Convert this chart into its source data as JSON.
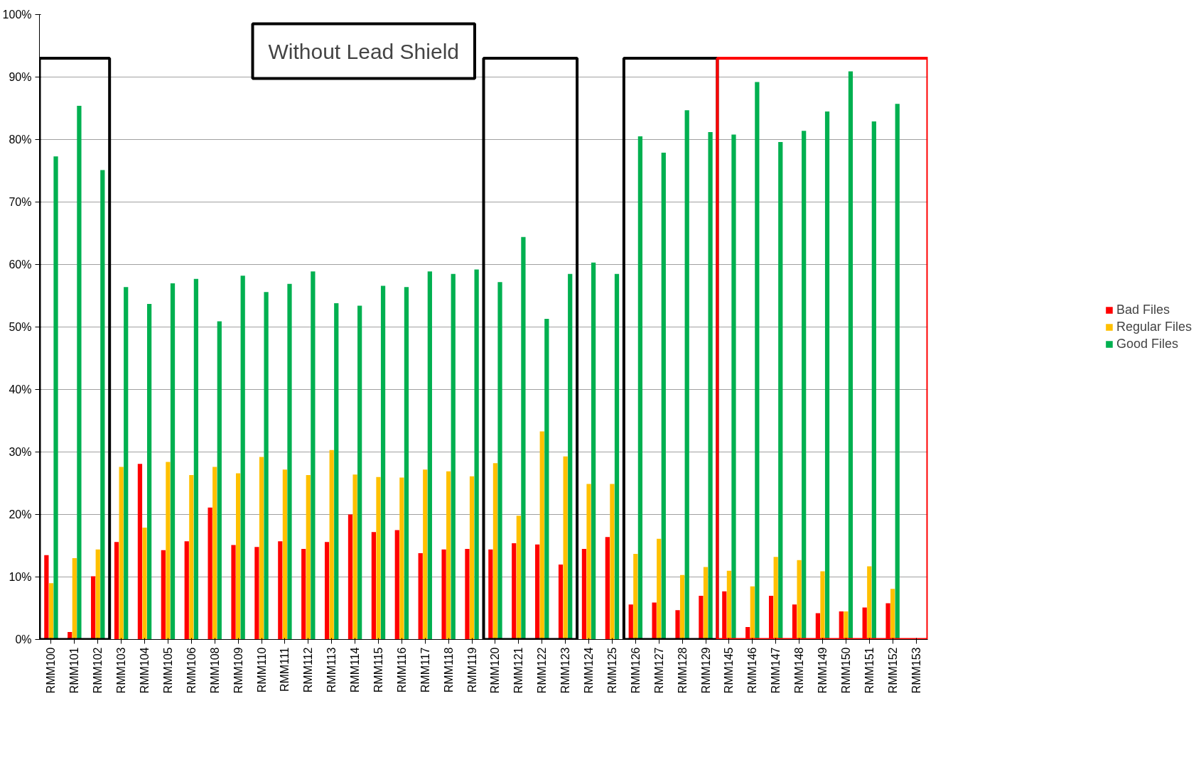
{
  "chart_data": {
    "type": "bar",
    "categories": [
      "RMM100",
      "RMM101",
      "RMM102",
      "RMM103",
      "RMM104",
      "RMM105",
      "RMM106",
      "RMM108",
      "RMM109",
      "RMM110",
      "RMM111",
      "RMM112",
      "RMM113",
      "RMM114",
      "RMM115",
      "RMM116",
      "RMM117",
      "RMM118",
      "RMM119",
      "RMM120",
      "RMM121",
      "RMM122",
      "RMM123",
      "RMM124",
      "RMM125",
      "RMM126",
      "RMM127",
      "RMM128",
      "RMM129",
      "RMM145",
      "RMM146",
      "RMM147",
      "RMM148",
      "RMM149",
      "RMM150",
      "RMM151",
      "RMM152",
      "RMM153"
    ],
    "series": [
      {
        "name": "Bad Files",
        "color": "#ff0000",
        "values": [
          13.5,
          1.2,
          10.1,
          15.6,
          28.1,
          14.3,
          15.7,
          21.1,
          15.1,
          14.8,
          15.7,
          14.5,
          15.6,
          20.0,
          17.2,
          17.5,
          13.8,
          14.4,
          14.5,
          14.4,
          15.4,
          15.2,
          12.0,
          14.5,
          16.4,
          5.6,
          5.9,
          4.7,
          7.0,
          7.7,
          2.0,
          7.0,
          5.6,
          4.2,
          4.5,
          5.1,
          5.8,
          0
        ]
      },
      {
        "name": "Regular Files",
        "color": "#ffc000",
        "values": [
          9.0,
          13.0,
          14.4,
          27.6,
          17.9,
          28.4,
          26.3,
          27.6,
          26.6,
          29.2,
          27.2,
          26.3,
          30.3,
          26.4,
          26.0,
          25.9,
          27.2,
          26.9,
          26.1,
          28.2,
          19.8,
          33.3,
          29.3,
          24.9,
          24.9,
          13.7,
          16.1,
          10.3,
          11.6,
          11.0,
          8.5,
          13.2,
          12.7,
          10.9,
          4.5,
          11.7,
          8.1,
          0
        ]
      },
      {
        "name": "Good Files",
        "color": "#00b050",
        "values": [
          77.3,
          85.4,
          75.1,
          56.4,
          53.7,
          57.0,
          57.7,
          50.9,
          58.2,
          55.6,
          56.9,
          58.9,
          53.8,
          53.4,
          56.6,
          56.4,
          58.9,
          58.5,
          59.2,
          57.2,
          64.4,
          51.3,
          58.5,
          60.3,
          58.5,
          80.5,
          77.9,
          84.7,
          81.2,
          80.8,
          89.2,
          79.6,
          81.4,
          84.5,
          90.9,
          82.9,
          85.7,
          0
        ]
      }
    ],
    "ylim": [
      0,
      100
    ],
    "yticks": [
      {
        "value": 0,
        "label": "0%"
      },
      {
        "value": 10,
        "label": "10%"
      },
      {
        "value": 20,
        "label": "20%"
      },
      {
        "value": 30,
        "label": "30%"
      },
      {
        "value": 40,
        "label": "40%"
      },
      {
        "value": 50,
        "label": "50%"
      },
      {
        "value": 60,
        "label": "60%"
      },
      {
        "value": 70,
        "label": "70%"
      },
      {
        "value": 80,
        "label": "80%"
      },
      {
        "value": 90,
        "label": "90%"
      },
      {
        "value": 100,
        "label": "100%"
      }
    ],
    "grid": "y",
    "legend": "right",
    "annotations": [
      "Without Lead Shield"
    ]
  }
}
